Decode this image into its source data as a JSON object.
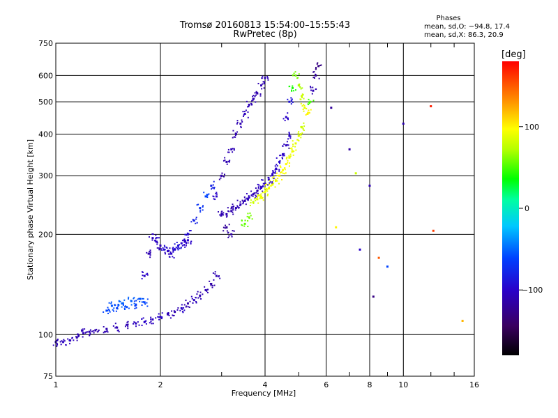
{
  "chart_data": {
    "type": "scatter",
    "title": "Tromsø 20160813 15:54:00–15:55:43",
    "subtitle": "RwPretec (8p)",
    "xlabel": "Frequency [MHz]",
    "ylabel": "Stationary phase Virtual Height [km]",
    "xscale": "log",
    "yscale": "log",
    "xlim": [
      1,
      16
    ],
    "ylim": [
      75,
      750
    ],
    "x_ticks": [
      1,
      2,
      4,
      6,
      8,
      10,
      16
    ],
    "x_tick_labels": [
      "1",
      "2",
      "4",
      "6",
      "8",
      "10",
      "16"
    ],
    "x_grid": [
      2,
      4,
      6,
      8,
      10
    ],
    "x_minor": [
      3,
      5,
      7,
      9,
      12,
      14
    ],
    "y_ticks": [
      75,
      100,
      200,
      300,
      400,
      500,
      600,
      750
    ],
    "y_tick_labels": [
      "75",
      "100",
      "200",
      "300",
      "400",
      "500",
      "600",
      "750"
    ],
    "y_grid": [
      100,
      200,
      300,
      400,
      500,
      600
    ],
    "phases": {
      "heading": "Phases",
      "line_o": "mean, sd,O: −94.8, 17.4",
      "line_x": "mean, sd,X:  86.3, 20.9"
    },
    "colorbar": {
      "label": "[deg]",
      "range": [
        -180,
        180
      ],
      "tick_values": [
        100,
        0,
        -100
      ],
      "tick_labels": [
        "100",
        "0",
        "−100"
      ]
    },
    "series": [
      {
        "name": "trace-low",
        "x": [
          1.0,
          1.05,
          1.1,
          1.15,
          1.2,
          1.25,
          1.3,
          1.4,
          1.5,
          1.6,
          1.7,
          1.8,
          1.9,
          2.0,
          2.1,
          2.2,
          2.3,
          2.4,
          2.5,
          2.6,
          2.7,
          2.8,
          2.9
        ],
        "y": [
          95,
          95,
          96,
          98,
          101,
          102,
          103,
          104,
          105,
          107,
          108,
          109,
          111,
          113,
          115,
          117,
          120,
          124,
          127,
          131,
          136,
          142,
          150
        ],
        "phase": [
          -105,
          -105,
          -105,
          -110,
          -108,
          -110,
          -112,
          -110,
          -108,
          -110,
          -105,
          -100,
          -105,
          -100,
          -108,
          -110,
          -100,
          -112,
          -105,
          -110,
          -110,
          -115,
          -110
        ]
      },
      {
        "name": "trace-cyan-low",
        "x": [
          1.4,
          1.45,
          1.5,
          1.55,
          1.6,
          1.65,
          1.7,
          1.75,
          1.8
        ],
        "y": [
          118,
          122,
          120,
          124,
          121,
          126,
          123,
          128,
          125
        ],
        "phase": [
          -60,
          -55,
          -62,
          -50,
          -58,
          -52,
          -65,
          -55,
          -60
        ]
      },
      {
        "name": "trace-e-cusp",
        "x": [
          1.8,
          1.85,
          1.9,
          1.95,
          2.0,
          2.05,
          2.1,
          2.15,
          2.2,
          2.25,
          2.3,
          2.35,
          2.4
        ],
        "y": [
          150,
          175,
          195,
          190,
          185,
          180,
          178,
          175,
          180,
          185,
          188,
          190,
          192
        ],
        "phase": [
          -100,
          -110,
          -105,
          -100,
          -108,
          -95,
          -105,
          -100,
          -95,
          -90,
          -98,
          -102,
          -100
        ]
      },
      {
        "name": "trace-f1",
        "x": [
          2.4,
          2.5,
          2.6,
          2.7,
          2.8,
          2.9,
          3.0,
          3.1,
          3.2
        ],
        "y": [
          200,
          220,
          240,
          260,
          280,
          260,
          230,
          210,
          200
        ],
        "phase": [
          -95,
          -80,
          -70,
          -60,
          -80,
          -100,
          -110,
          -120,
          -115
        ]
      },
      {
        "name": "trace-f2-o",
        "x": [
          3.1,
          3.2,
          3.3,
          3.4,
          3.5,
          3.6,
          3.7,
          3.8,
          3.9,
          4.0,
          4.1,
          4.2,
          4.3,
          4.4,
          4.5,
          4.6,
          4.7
        ],
        "y": [
          230,
          235,
          240,
          246,
          252,
          258,
          264,
          270,
          276,
          284,
          292,
          302,
          315,
          330,
          348,
          370,
          395
        ],
        "phase": [
          -110,
          -112,
          -110,
          -108,
          -110,
          -105,
          -108,
          -110,
          -102,
          -100,
          -104,
          -100,
          -102,
          -98,
          -100,
          -105,
          -100
        ]
      },
      {
        "name": "trace-f2-upper",
        "x": [
          3.0,
          3.1,
          3.2,
          3.3,
          3.4,
          3.5,
          3.6,
          3.7,
          3.8,
          3.9,
          4.0
        ],
        "y": [
          300,
          330,
          360,
          400,
          430,
          460,
          490,
          510,
          530,
          560,
          590
        ],
        "phase": [
          -115,
          -110,
          -108,
          -112,
          -110,
          -105,
          -108,
          -110,
          -112,
          -110,
          -108
        ]
      },
      {
        "name": "trace-x-mode",
        "x": [
          3.5,
          3.6,
          3.7,
          3.8,
          3.9,
          4.0,
          4.1,
          4.2,
          4.3,
          4.4,
          4.5,
          4.6,
          4.7,
          4.8,
          4.9,
          5.0,
          5.1
        ],
        "y": [
          215,
          225,
          250,
          255,
          260,
          268,
          275,
          282,
          290,
          300,
          312,
          325,
          340,
          355,
          375,
          395,
          420
        ],
        "phase": [
          55,
          60,
          80,
          90,
          92,
          88,
          95,
          90,
          92,
          100,
          95,
          98,
          90,
          92,
          88,
          85,
          80
        ]
      },
      {
        "name": "trace-high",
        "x": [
          4.6,
          4.7,
          4.8,
          4.9,
          5.0,
          5.1,
          5.2,
          5.3,
          5.4,
          5.5,
          5.6,
          5.7
        ],
        "y": [
          450,
          500,
          550,
          600,
          560,
          520,
          480,
          460,
          500,
          540,
          600,
          640
        ],
        "phase": [
          -100,
          -90,
          40,
          60,
          70,
          80,
          90,
          100,
          50,
          -110,
          -120,
          -130
        ]
      },
      {
        "name": "scattered",
        "x": [
          6.2,
          6.4,
          7.0,
          7.3,
          7.5,
          8.0,
          8.2,
          8.5,
          9.0,
          10.0,
          12.0,
          12.2,
          14.8
        ],
        "y": [
          480,
          210,
          360,
          305,
          180,
          280,
          130,
          170,
          160,
          430,
          485,
          205,
          110
        ],
        "phase": [
          -120,
          100,
          -115,
          80,
          -100,
          -110,
          -130,
          150,
          -60,
          -110,
          170,
          160,
          120
        ]
      }
    ]
  }
}
